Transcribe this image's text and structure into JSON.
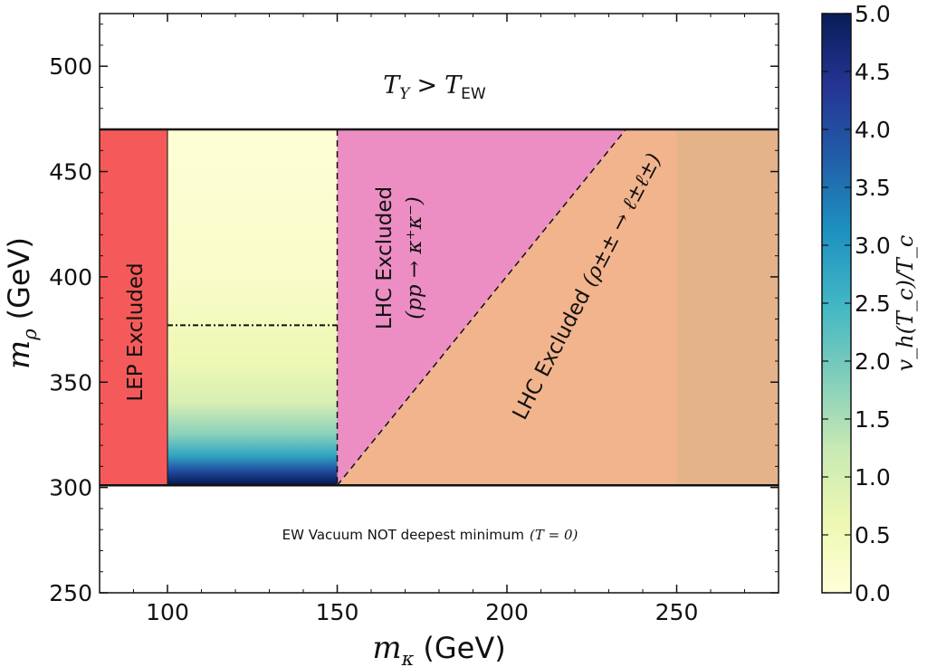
{
  "chart_data": {
    "type": "heatmap",
    "xlabel": {
      "symbol": "m",
      "sub": "κ",
      "unit": "(GeV)"
    },
    "ylabel": {
      "symbol": "m",
      "sub": "ρ",
      "unit": "(GeV)"
    },
    "xlim": [
      80,
      280
    ],
    "ylim": [
      250,
      525
    ],
    "x_ticks": [
      "100",
      "150",
      "200",
      "250"
    ],
    "x_tick_values": [
      100,
      150,
      200,
      250
    ],
    "y_ticks": [
      "250",
      "300",
      "350",
      "400",
      "450",
      "500"
    ],
    "y_tick_values": [
      250,
      300,
      350,
      400,
      450,
      500
    ],
    "colorbar": {
      "label": "v_h(T_c)/T_c",
      "range": [
        0.0,
        5.0
      ],
      "ticks": [
        "0.0",
        "0.5",
        "1.0",
        "1.5",
        "2.0",
        "2.5",
        "3.0",
        "3.5",
        "4.0",
        "4.5",
        "5.0"
      ],
      "colors": [
        "#ffffd9",
        "#edf8b1",
        "#c7e9b4",
        "#7fcdbb",
        "#41b6c4",
        "#1d91c0",
        "#225ea8",
        "#253494",
        "#081d58"
      ]
    },
    "boundaries": {
      "ty_gt_tew_above": 470,
      "vacuum_below": 301,
      "lep_limit": 100,
      "lhc_kk_limit": 150,
      "diagonal": {
        "x0": 150,
        "y0": 301,
        "x1": 235,
        "y1": 470
      },
      "right_band_start": 250
    },
    "dashdot_line": {
      "x0": 100,
      "x1": 150,
      "y": 377
    },
    "heatmap_profile": [
      {
        "y": 470,
        "value": 0.05
      },
      {
        "y": 400,
        "value": 0.25
      },
      {
        "y": 360,
        "value": 0.6
      },
      {
        "y": 340,
        "value": 1.0
      },
      {
        "y": 325,
        "value": 1.8
      },
      {
        "y": 315,
        "value": 2.8
      },
      {
        "y": 308,
        "value": 4.0
      },
      {
        "y": 302,
        "value": 5.0
      }
    ],
    "regions": {
      "ty_label": {
        "main": "T",
        "sub": "Y",
        "op": ">",
        "main2": "T",
        "sub2": "EW"
      },
      "lep": "LEP Excluded",
      "lhc1_line1": "LHC Excluded",
      "lhc1_line2": "(pp → κ⁺κ⁻)",
      "lhc2_text": "LHC Excluded",
      "lhc2_process": "(ρ±± → ℓ±ℓ±)",
      "vacuum": "EW Vacuum NOT deepest minimum",
      "vacuum_cond": "(T = 0)"
    },
    "colors": {
      "lep": "#f55a5a",
      "lhc_pink": "#ec8ec4",
      "lhc_orange": "#f2b48d",
      "right_band_tint": "#d8b288"
    }
  }
}
